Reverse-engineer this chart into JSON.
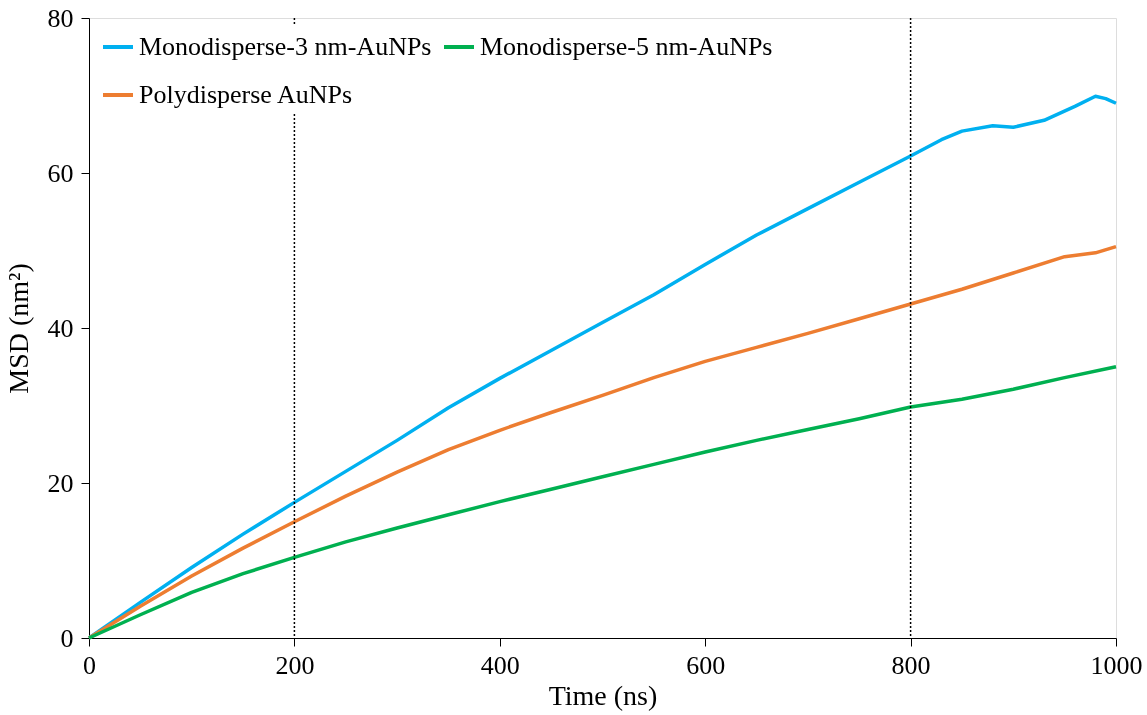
{
  "chart_data": {
    "type": "line",
    "xlabel": "Time (ns)",
    "ylabel": "MSD (nm²)",
    "xlim": [
      0,
      1000
    ],
    "xticks": [
      0,
      200,
      400,
      600,
      800,
      1000
    ],
    "ylim": [
      0,
      80
    ],
    "yticks": [
      0,
      20,
      40,
      60,
      80
    ],
    "grid": false,
    "legend": "top left",
    "marker": "none",
    "line_style": "solid",
    "ref_lines": [
      {
        "axis": "x",
        "value": 200,
        "color": "#000000",
        "line_style": "dotted"
      },
      {
        "axis": "x",
        "value": 800,
        "color": "#000000",
        "line_style": "dotted"
      }
    ],
    "series": [
      {
        "name": "Monodisperse-3 nm-AuNPs",
        "color": "#00b0f0",
        "x": [
          0,
          50,
          100,
          150,
          200,
          250,
          300,
          350,
          400,
          450,
          500,
          550,
          600,
          650,
          700,
          750,
          800,
          830,
          850,
          880,
          900,
          930,
          960,
          980,
          990,
          1000
        ],
        "values": [
          0,
          4.6,
          9.1,
          13.4,
          17.5,
          21.5,
          25.5,
          29.7,
          33.5,
          37.1,
          40.7,
          44.3,
          48.2,
          52,
          55.4,
          58.8,
          62.2,
          64.3,
          65.4,
          66.1,
          65.9,
          66.8,
          68.6,
          69.9,
          69.6,
          69
        ]
      },
      {
        "name": "Polydisperse AuNPs",
        "color": "#ed7d31",
        "x": [
          0,
          50,
          100,
          150,
          200,
          250,
          300,
          350,
          400,
          450,
          500,
          550,
          600,
          650,
          700,
          750,
          800,
          850,
          900,
          950,
          980,
          1000
        ],
        "values": [
          0,
          4.1,
          8,
          11.6,
          15,
          18.3,
          21.4,
          24.3,
          26.8,
          29.1,
          31.3,
          33.6,
          35.7,
          37.5,
          39.3,
          41.2,
          43.1,
          45,
          47.1,
          49.2,
          49.7,
          50.5
        ]
      },
      {
        "name": "Monodisperse-5 nm-AuNPs",
        "color": "#00b050",
        "x": [
          0,
          50,
          100,
          150,
          200,
          250,
          300,
          350,
          400,
          450,
          500,
          550,
          600,
          650,
          700,
          750,
          800,
          850,
          900,
          950,
          1000
        ],
        "values": [
          0,
          3,
          5.9,
          8.3,
          10.4,
          12.4,
          14.2,
          15.9,
          17.6,
          19.2,
          20.8,
          22.4,
          24,
          25.5,
          26.9,
          28.3,
          29.8,
          30.8,
          32.1,
          33.6,
          35
        ]
      }
    ]
  }
}
